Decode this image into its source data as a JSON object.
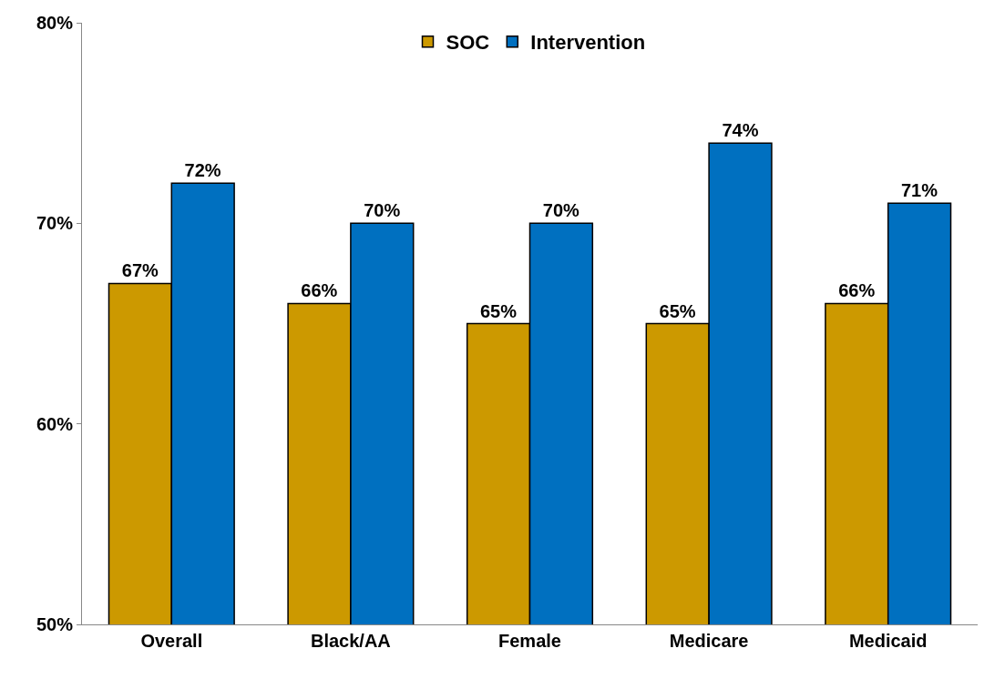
{
  "chart_data": {
    "type": "bar",
    "categories": [
      "Overall",
      "Black/AA",
      "Female",
      "Medicare",
      "Medicaid"
    ],
    "series": [
      {
        "name": "SOC",
        "color": "#cc9900",
        "values": [
          67,
          66,
          65,
          65,
          66
        ],
        "value_labels": [
          "67%",
          "66%",
          "65%",
          "65%",
          "66%"
        ]
      },
      {
        "name": "Intervention",
        "color": "#0070c0",
        "values": [
          72,
          70,
          70,
          74,
          71
        ],
        "value_labels": [
          "72%",
          "70%",
          "70%",
          "74%",
          "71%"
        ]
      }
    ],
    "ylim": [
      50,
      80
    ],
    "yticks": [
      {
        "value": 50,
        "label": "50%"
      },
      {
        "value": 60,
        "label": "60%"
      },
      {
        "value": 70,
        "label": "70%"
      },
      {
        "value": 80,
        "label": "80%"
      }
    ],
    "legend": "top"
  }
}
